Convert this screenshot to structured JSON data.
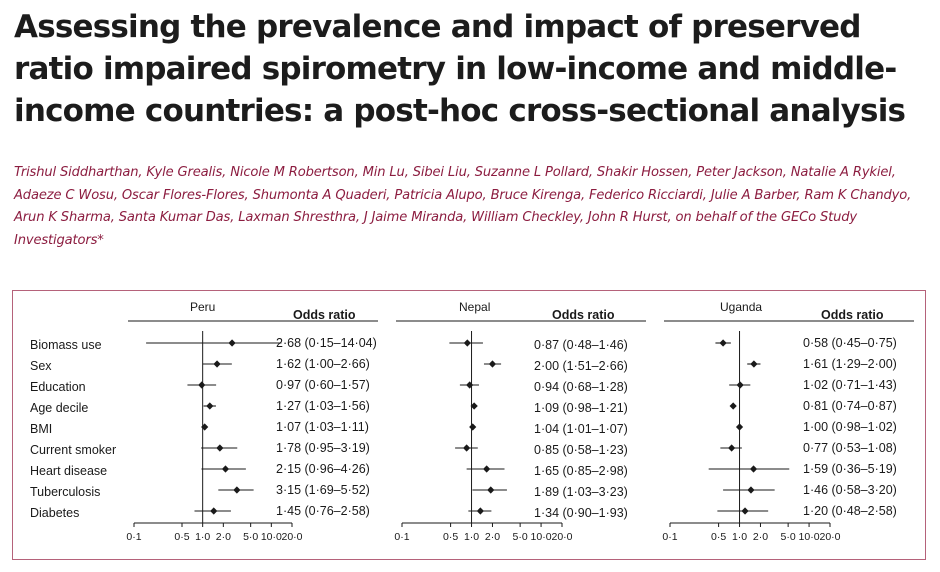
{
  "title": "Assessing the prevalence and impact of preserved ratio impaired spirometry in low-income and middle-income countries: a post-hoc cross-sectional analysis",
  "authors": "Trishul Siddharthan, Kyle Grealis, Nicole M Robertson, Min Lu, Sibei Liu, Suzanne L Pollard, Shakir Hossen, Peter Jackson, Natalie A Rykiel, Adaeze C Wosu, Oscar Flores-Flores, Shumonta A Quaderi, Patricia Alupo, Bruce Kirenga, Federico Ricciardi, Julie A Barber, Ram K Chandyo, Arun K Sharma, Santa Kumar Das, Laxman Shresthra, J Jaime Miranda, William Checkley, John R Hurst, on behalf of the GECo Study Investigators*",
  "colors": {
    "author_text": "#8c1d40",
    "figure_border": "#b5627a",
    "ink": "#1a1a1a"
  },
  "figure": {
    "odds_ratio_header": "Odds ratio",
    "variables": [
      "Biomass use",
      "Sex",
      "Education",
      "Age decile",
      "BMI",
      "Current smoker",
      "Heart disease",
      "Tuberculosis",
      "Diabetes"
    ]
  },
  "chart_data": [
    {
      "type": "forest",
      "title": "Peru",
      "xscale": "log",
      "xticks": [
        "0·1",
        "0·5",
        "1·0",
        "2·0",
        "5·0",
        "10·0",
        "20·0"
      ],
      "xtick_values": [
        0.1,
        0.5,
        1,
        2,
        5,
        10,
        20
      ],
      "reference_line": 1,
      "rows": [
        {
          "label": "Biomass use",
          "or": 2.68,
          "lo": 0.15,
          "hi": 14.04,
          "text": "2·68 (0·15–14·04)"
        },
        {
          "label": "Sex",
          "or": 1.62,
          "lo": 1.0,
          "hi": 2.66,
          "text": "1·62 (1·00–2·66)"
        },
        {
          "label": "Education",
          "or": 0.97,
          "lo": 0.6,
          "hi": 1.57,
          "text": "0·97 (0·60–1·57)"
        },
        {
          "label": "Age decile",
          "or": 1.27,
          "lo": 1.03,
          "hi": 1.56,
          "text": "1·27 (1·03–1·56)"
        },
        {
          "label": "BMI",
          "or": 1.07,
          "lo": 1.03,
          "hi": 1.11,
          "text": "1·07 (1·03–1·11)"
        },
        {
          "label": "Current smoker",
          "or": 1.78,
          "lo": 0.95,
          "hi": 3.19,
          "text": "1·78 (0·95–3·19)"
        },
        {
          "label": "Heart disease",
          "or": 2.15,
          "lo": 0.96,
          "hi": 4.26,
          "text": "2·15 (0·96–4·26)"
        },
        {
          "label": "Tuberculosis",
          "or": 3.15,
          "lo": 1.69,
          "hi": 5.52,
          "text": "3·15 (1·69–5·52)"
        },
        {
          "label": "Diabetes",
          "or": 1.45,
          "lo": 0.76,
          "hi": 2.58,
          "text": "1·45 (0·76–2·58)"
        }
      ]
    },
    {
      "type": "forest",
      "title": "Nepal",
      "xscale": "log",
      "xticks": [
        "0·1",
        "0·5",
        "1·0",
        "2·0",
        "5·0",
        "10·0",
        "20·0"
      ],
      "xtick_values": [
        0.1,
        0.5,
        1,
        2,
        5,
        10,
        20
      ],
      "reference_line": 1,
      "rows": [
        {
          "label": "Biomass use",
          "or": 0.87,
          "lo": 0.48,
          "hi": 1.46,
          "text": "0·87 (0·48–1·46)"
        },
        {
          "label": "Sex",
          "or": 2.0,
          "lo": 1.51,
          "hi": 2.66,
          "text": "2·00 (1·51–2·66)"
        },
        {
          "label": "Education",
          "or": 0.94,
          "lo": 0.68,
          "hi": 1.28,
          "text": "0·94 (0·68–1·28)"
        },
        {
          "label": "Age decile",
          "or": 1.09,
          "lo": 0.98,
          "hi": 1.21,
          "text": "1·09 (0·98–1·21)"
        },
        {
          "label": "BMI",
          "or": 1.04,
          "lo": 1.01,
          "hi": 1.07,
          "text": "1·04 (1·01–1·07)"
        },
        {
          "label": "Current smoker",
          "or": 0.85,
          "lo": 0.58,
          "hi": 1.23,
          "text": "0·85 (0·58–1·23)"
        },
        {
          "label": "Heart disease",
          "or": 1.65,
          "lo": 0.85,
          "hi": 2.98,
          "text": "1·65 (0·85–2·98)"
        },
        {
          "label": "Tuberculosis",
          "or": 1.89,
          "lo": 1.03,
          "hi": 3.23,
          "text": "1·89 (1·03–3·23)"
        },
        {
          "label": "Diabetes",
          "or": 1.34,
          "lo": 0.9,
          "hi": 1.93,
          "text": "1·34 (0·90–1·93)"
        }
      ]
    },
    {
      "type": "forest",
      "title": "Uganda",
      "xscale": "log",
      "xticks": [
        "0·1",
        "0·5",
        "1·0",
        "2·0",
        "5·0",
        "10·0",
        "20·0"
      ],
      "xtick_values": [
        0.1,
        0.5,
        1,
        2,
        5,
        10,
        20
      ],
      "reference_line": 1,
      "rows": [
        {
          "label": "Biomass use",
          "or": 0.58,
          "lo": 0.45,
          "hi": 0.75,
          "text": "0·58 (0·45–0·75)"
        },
        {
          "label": "Sex",
          "or": 1.61,
          "lo": 1.29,
          "hi": 2.0,
          "text": "1·61 (1·29–2·00)"
        },
        {
          "label": "Education",
          "or": 1.02,
          "lo": 0.71,
          "hi": 1.43,
          "text": "1·02 (0·71–1·43)"
        },
        {
          "label": "Age decile",
          "or": 0.81,
          "lo": 0.74,
          "hi": 0.87,
          "text": "0·81 (0·74–0·87)"
        },
        {
          "label": "BMI",
          "or": 1.0,
          "lo": 0.98,
          "hi": 1.02,
          "text": "1·00 (0·98–1·02)"
        },
        {
          "label": "Current smoker",
          "or": 0.77,
          "lo": 0.53,
          "hi": 1.08,
          "text": "0·77 (0·53–1·08)"
        },
        {
          "label": "Heart disease",
          "or": 1.59,
          "lo": 0.36,
          "hi": 5.19,
          "text": "1·59 (0·36–5·19)"
        },
        {
          "label": "Tuberculosis",
          "or": 1.46,
          "lo": 0.58,
          "hi": 3.2,
          "text": "1·46 (0·58–3·20)"
        },
        {
          "label": "Diabetes",
          "or": 1.2,
          "lo": 0.48,
          "hi": 2.58,
          "text": "1·20 (0·48–2·58)"
        }
      ]
    }
  ]
}
